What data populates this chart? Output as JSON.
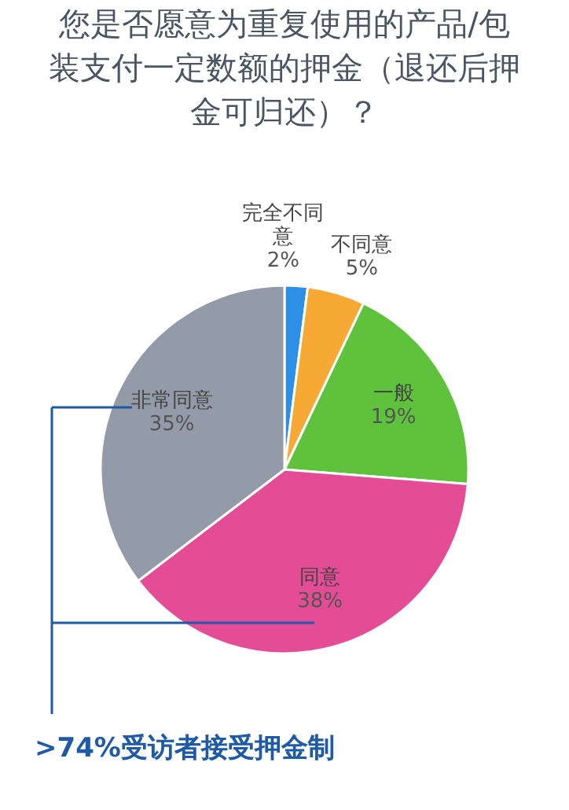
{
  "chart_data": {
    "type": "pie",
    "title": "您是否愿意为重复使用的产品/包装支付一定数额的押金（退还后押金可归还）？",
    "categories": [
      "完全不同意",
      "不同意",
      "一般",
      "同意",
      "非常同意"
    ],
    "values": [
      2,
      5,
      19,
      38,
      35
    ],
    "value_labels": [
      "2%",
      "5%",
      "19%",
      "38%",
      "35%"
    ],
    "colors": [
      "#2e8fe6",
      "#f7a935",
      "#5ec23d",
      "#e54c96",
      "#939ba9"
    ],
    "legend": false,
    "annotations": [
      ">74%受访者接受押金制"
    ]
  }
}
